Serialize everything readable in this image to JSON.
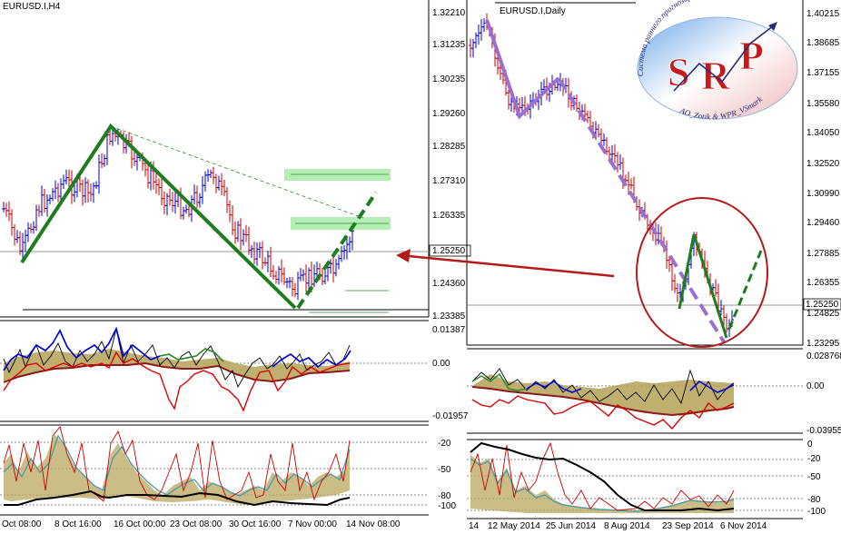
{
  "left_chart": {
    "title": "EURUSD.I,H4",
    "price_ticks": [
      "1.32210",
      "1.31235",
      "1.30235",
      "1.29260",
      "1.28285",
      "1.27310",
      "1.26335",
      "1.25250",
      "1.24360",
      "1.23385"
    ],
    "current_price": "1.25250",
    "osc1_ticks": [
      "0.01387",
      "0.00",
      "-0.01957"
    ],
    "osc2_ticks": [
      "-20",
      "-50",
      "-80",
      "-100"
    ],
    "time_ticks": [
      "Oct 08:00",
      "8 Oct 16:00",
      "16 Oct 00:00",
      "23 Oct 08:00",
      "30 Oct 16:00",
      "7 Nov 00:00",
      "14 Nov 08:00"
    ]
  },
  "right_chart": {
    "title": "EURUSD.I,Daily",
    "price_ticks": [
      "1.40215",
      "1.38685",
      "1.37155",
      "1.35580",
      "1.34050",
      "1.32520",
      "1.30990",
      "1.29460",
      "1.27885",
      "1.26355",
      "1.24825",
      "1.23295"
    ],
    "current_price": "1.25250",
    "osc1_ticks": [
      "0.028768",
      "0.00",
      "-0.039559"
    ],
    "osc2_ticks": [
      "0",
      "-20",
      "-50",
      "-80",
      "-100"
    ],
    "time_ticks": [
      "14",
      "12 May 2014",
      "25 Jun 2014",
      "8 Aug 2014",
      "23 Sep 2014",
      "6 Nov 2014"
    ]
  },
  "logo": {
    "letters": [
      "S",
      "R",
      "P"
    ],
    "arc_text_top": "Система раннего прогнозирования",
    "arc_text_bottom": "AO_Zotik & WPR_VSmark"
  },
  "colors": {
    "bull_bar": "#0000cc",
    "bear_bar": "#cc0000",
    "wave_green": "#1e7d1e",
    "wave_purple": "#9a6fd0",
    "target_zone": "#9be89b",
    "callout_red": "#b41a1a"
  }
}
